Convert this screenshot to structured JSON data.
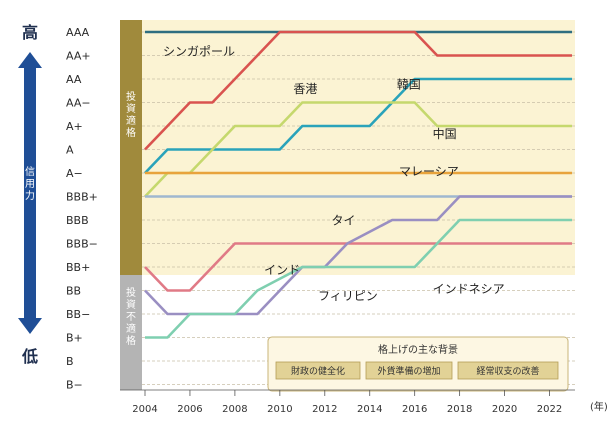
{
  "chart_data": {
    "type": "line",
    "y_axis": {
      "ratings": [
        "AAA",
        "AA+",
        "AA",
        "AA−",
        "A+",
        "A",
        "A−",
        "BBB+",
        "BBB",
        "BBB−",
        "BB+",
        "BB",
        "BB−",
        "B+",
        "B",
        "B−"
      ],
      "high_label": "高",
      "low_label": "低",
      "axis_title": "信用力",
      "investment_grade_label": "投資適格",
      "speculative_grade_label": "投資不適格"
    },
    "x_axis": {
      "ticks": [
        2004,
        2006,
        2008,
        2010,
        2012,
        2014,
        2016,
        2018,
        2020,
        2022
      ],
      "unit": "(年)",
      "range": [
        2004,
        2023
      ]
    },
    "series": [
      {
        "name": "シンガポール",
        "color": "#2e6e80",
        "points": [
          [
            2004,
            "AAA"
          ],
          [
            2023,
            "AAA"
          ]
        ]
      },
      {
        "name": "香港",
        "color": "#d9534f",
        "points": [
          [
            2004,
            "A"
          ],
          [
            2005,
            "A+"
          ],
          [
            2006,
            "AA−"
          ],
          [
            2007,
            "AA−"
          ],
          [
            2008,
            "AA"
          ],
          [
            2009,
            "AA+"
          ],
          [
            2010,
            "AAA"
          ],
          [
            2016,
            "AAA"
          ],
          [
            2017,
            "AA+"
          ],
          [
            2023,
            "AA+"
          ]
        ]
      },
      {
        "name": "韓国",
        "color": "#2aa3ba",
        "points": [
          [
            2004,
            "A−"
          ],
          [
            2005,
            "A"
          ],
          [
            2010,
            "A"
          ],
          [
            2011,
            "A+"
          ],
          [
            2014,
            "A+"
          ],
          [
            2015,
            "AA−"
          ],
          [
            2016,
            "AA"
          ],
          [
            2023,
            "AA"
          ]
        ]
      },
      {
        "name": "中国",
        "color": "#c5d86d",
        "points": [
          [
            2004,
            "BBB+"
          ],
          [
            2005,
            "A−"
          ],
          [
            2006,
            "A−"
          ],
          [
            2007,
            "A"
          ],
          [
            2008,
            "A+"
          ],
          [
            2010,
            "A+"
          ],
          [
            2011,
            "AA−"
          ],
          [
            2016,
            "AA−"
          ],
          [
            2017,
            "A+"
          ],
          [
            2023,
            "A+"
          ]
        ]
      },
      {
        "name": "マレーシア",
        "color": "#e8a33c",
        "points": [
          [
            2004,
            "A−"
          ],
          [
            2023,
            "A−"
          ]
        ]
      },
      {
        "name": "タイ",
        "color": "#9fb7cf",
        "points": [
          [
            2004,
            "BBB+"
          ],
          [
            2023,
            "BBB+"
          ]
        ]
      },
      {
        "name": "インド",
        "color": "#e07a86",
        "points": [
          [
            2004,
            "BB+"
          ],
          [
            2005,
            "BB"
          ],
          [
            2006,
            "BB"
          ],
          [
            2007,
            "BB+"
          ],
          [
            2008,
            "BBB−"
          ],
          [
            2023,
            "BBB−"
          ]
        ]
      },
      {
        "name": "フィリピン",
        "color": "#9a8fc2",
        "points": [
          [
            2004,
            "BB"
          ],
          [
            2005,
            "BB−"
          ],
          [
            2009,
            "BB−"
          ],
          [
            2010,
            "BB"
          ],
          [
            2011,
            "BB+"
          ],
          [
            2012,
            "BB+"
          ],
          [
            2013,
            "BBB−"
          ],
          [
            2015,
            "BBB"
          ],
          [
            2017,
            "BBB"
          ],
          [
            2018,
            "BBB+"
          ],
          [
            2023,
            "BBB+"
          ]
        ]
      },
      {
        "name": "インドネシア",
        "color": "#7fcfb0",
        "points": [
          [
            2004,
            "B+"
          ],
          [
            2005,
            "B+"
          ],
          [
            2006,
            "BB−"
          ],
          [
            2008,
            "BB−"
          ],
          [
            2009,
            "BB"
          ],
          [
            2011,
            "BB+"
          ],
          [
            2016,
            "BB+"
          ],
          [
            2017,
            "BBB−"
          ],
          [
            2018,
            "BBB"
          ],
          [
            2023,
            "BBB"
          ]
        ]
      }
    ],
    "labels": [
      {
        "text": "シンガポール",
        "x": 2004.8,
        "r": 1
      },
      {
        "text": "香港",
        "x": 2010.6,
        "r": 2.6
      },
      {
        "text": "韓国",
        "x": 2015.2,
        "r": 2.4
      },
      {
        "text": "中国",
        "x": 2016.8,
        "r": 4.5
      },
      {
        "text": "マレーシア",
        "x": 2015.3,
        "r": 6.1
      },
      {
        "text": "タイ",
        "x": 2012.3,
        "r": 8.2
      },
      {
        "text": "インド",
        "x": 2009.3,
        "r": 10.3
      },
      {
        "text": "フィリピン",
        "x": 2011.7,
        "r": 11.4
      },
      {
        "text": "インドネシア",
        "x": 2016.8,
        "r": 11.1
      }
    ],
    "note": {
      "title": "格上げの主な背景",
      "items": [
        "財政の健全化",
        "外貨準備の増加",
        "経常収支の改善"
      ]
    }
  }
}
